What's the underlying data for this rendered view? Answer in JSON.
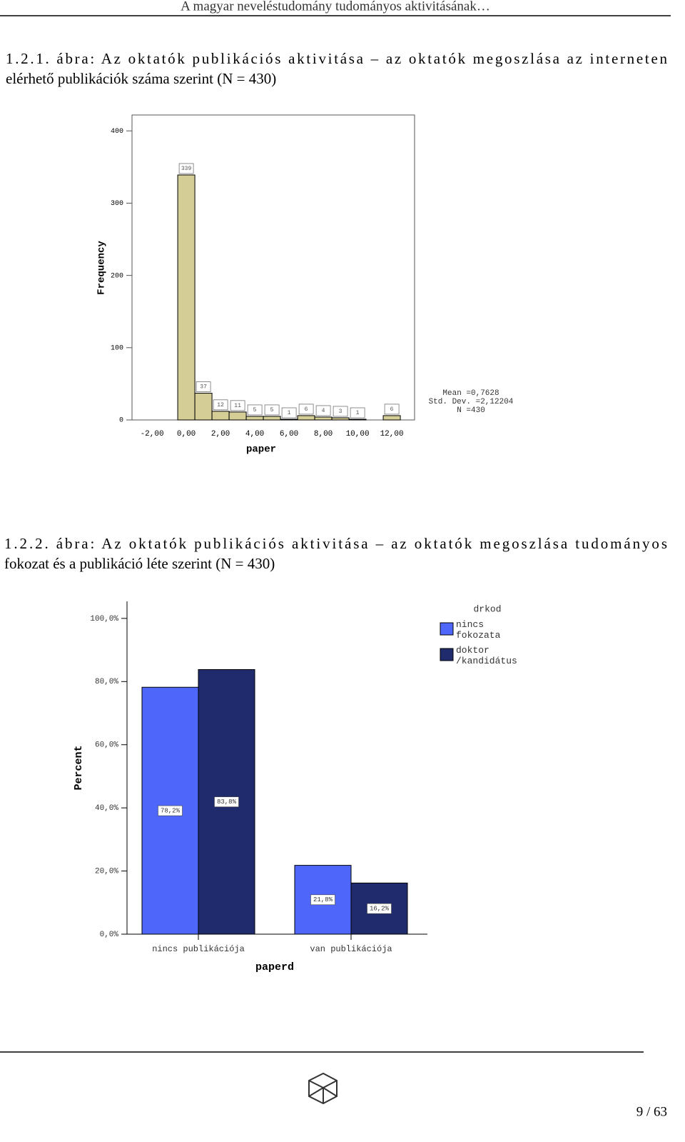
{
  "header": {
    "title": "A magyar neveléstudomány tudományos aktivitásának…"
  },
  "figure_captions": [
    [
      "1.2.1. ábra: Az oktatók publikációs aktivitása – az oktatók megoszlása az interneten",
      "elérhető publikációk száma szerint (N = 430)"
    ],
    [
      "1.2.2. ábra: Az oktatók publikációs aktivitása – az oktatók megoszlása tudományos",
      "fokozat és a publikáció léte szerint (N = 430)"
    ]
  ],
  "chart_data": [
    {
      "type": "histogram",
      "x_label": "paper",
      "y_label": "Frequency",
      "color": "#d4cd96",
      "bins": [
        -0.5,
        0.5,
        1.5,
        2.5,
        3.5,
        4.5,
        5.5,
        6.5,
        7.5,
        8.5,
        9.5,
        10.5,
        11.5,
        12.5
      ],
      "values": [
        339,
        37,
        12,
        11,
        5,
        5,
        1,
        6,
        4,
        3,
        1,
        0,
        6
      ],
      "xlim": [
        -3.17,
        13.33
      ],
      "ylim": [
        0,
        422
      ],
      "xticks": [
        {
          "value": -2,
          "label": "-2,00"
        },
        {
          "value": 0,
          "label": "0,00"
        },
        {
          "value": 2,
          "label": "2,00"
        },
        {
          "value": 4,
          "label": "4,00"
        },
        {
          "value": 6,
          "label": "6,00"
        },
        {
          "value": 8,
          "label": "8,00"
        },
        {
          "value": 10,
          "label": "10,00"
        },
        {
          "value": 12,
          "label": "12,00"
        }
      ],
      "yticks": [
        0,
        100,
        200,
        300,
        400
      ],
      "stats": [
        "Mean =0,7628",
        "Std. Dev. =2,12204",
        "N =430"
      ]
    },
    {
      "type": "bar",
      "x_label": "paperd",
      "y_label": "Percent",
      "categories": [
        "nincs publikációja",
        "van publikációja"
      ],
      "series": [
        {
          "name": "nincs fokozata",
          "color": "#4f66fb",
          "values": [
            78.2,
            21.8
          ],
          "value_labels": [
            "78,2%",
            "21,8%"
          ]
        },
        {
          "name": "doktor /kandidátus",
          "color": "#1f2b6d",
          "values": [
            83.8,
            16.2
          ],
          "value_labels": [
            "83,8%",
            "16,2%"
          ]
        }
      ],
      "ylim": [
        0,
        105.4
      ],
      "yticks": [
        {
          "value": 0,
          "label": "0,0%"
        },
        {
          "value": 20,
          "label": "20,0%"
        },
        {
          "value": 40,
          "label": "40,0%"
        },
        {
          "value": 60,
          "label": "60,0%"
        },
        {
          "value": 80,
          "label": "80,0%"
        },
        {
          "value": 100,
          "label": "100,0%"
        }
      ],
      "legend": {
        "title": "drkod",
        "position": "right"
      }
    }
  ],
  "footer": {
    "page": "9 / 63"
  }
}
